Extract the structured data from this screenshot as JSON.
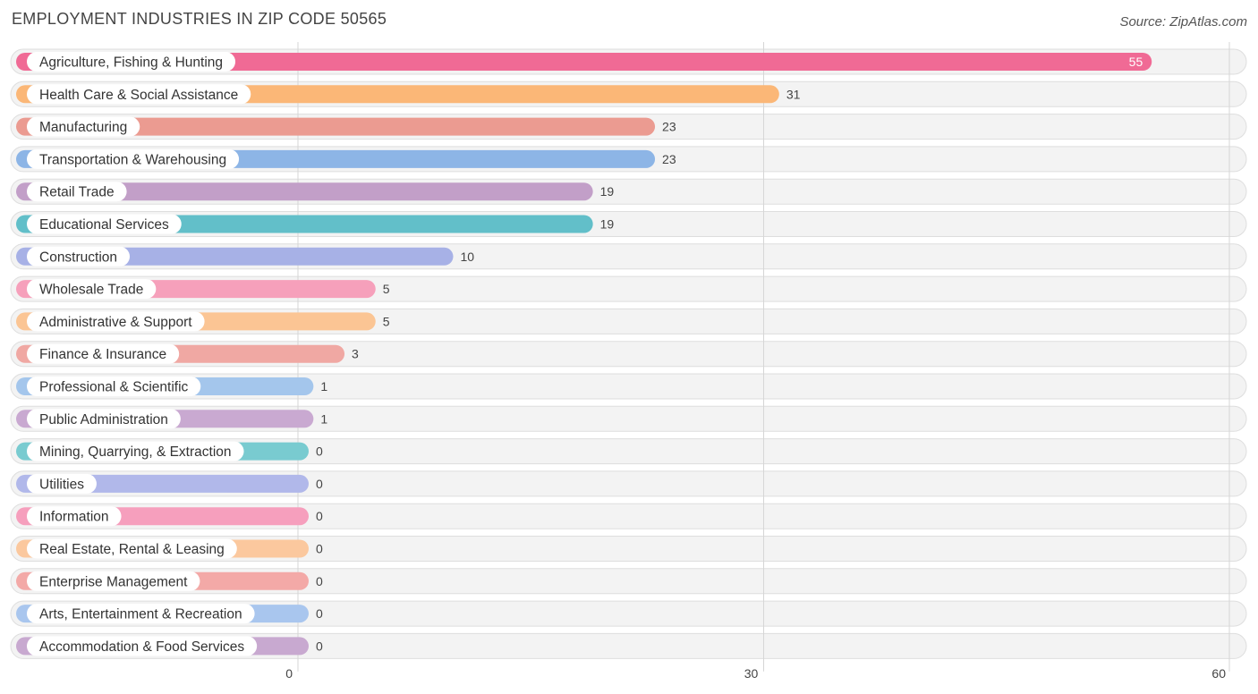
{
  "title": "EMPLOYMENT INDUSTRIES IN ZIP CODE 50565",
  "source": "Source: ZipAtlas.com",
  "chart_data": {
    "type": "bar",
    "orientation": "horizontal",
    "title": "EMPLOYMENT INDUSTRIES IN ZIP CODE 50565",
    "xlim": [
      0,
      60
    ],
    "x_ticks": [
      0,
      30,
      60
    ],
    "grid": true,
    "categories": [
      "Agriculture, Fishing & Hunting",
      "Health Care & Social Assistance",
      "Manufacturing",
      "Transportation & Warehousing",
      "Retail Trade",
      "Educational Services",
      "Construction",
      "Wholesale Trade",
      "Administrative & Support",
      "Finance & Insurance",
      "Professional & Scientific",
      "Public Administration",
      "Mining, Quarrying, & Extraction",
      "Utilities",
      "Information",
      "Real Estate, Rental & Leasing",
      "Enterprise Management",
      "Arts, Entertainment & Recreation",
      "Accommodation & Food Services"
    ],
    "values": [
      55,
      31,
      23,
      23,
      19,
      19,
      10,
      5,
      5,
      3,
      1,
      1,
      0,
      0,
      0,
      0,
      0,
      0,
      0
    ],
    "colors": [
      "#f06a95",
      "#fbb777",
      "#eb9b91",
      "#8db5e6",
      "#c29fc8",
      "#62bfc9",
      "#a7b1e6",
      "#f6a0bb",
      "#fbc594",
      "#f0a8a3",
      "#a4c6ec",
      "#c9a9d1",
      "#79cbd0",
      "#b1b8ea",
      "#f69fbd",
      "#fbc89e",
      "#f3a9a7",
      "#a9c6ee",
      "#c8a9d0"
    ]
  }
}
